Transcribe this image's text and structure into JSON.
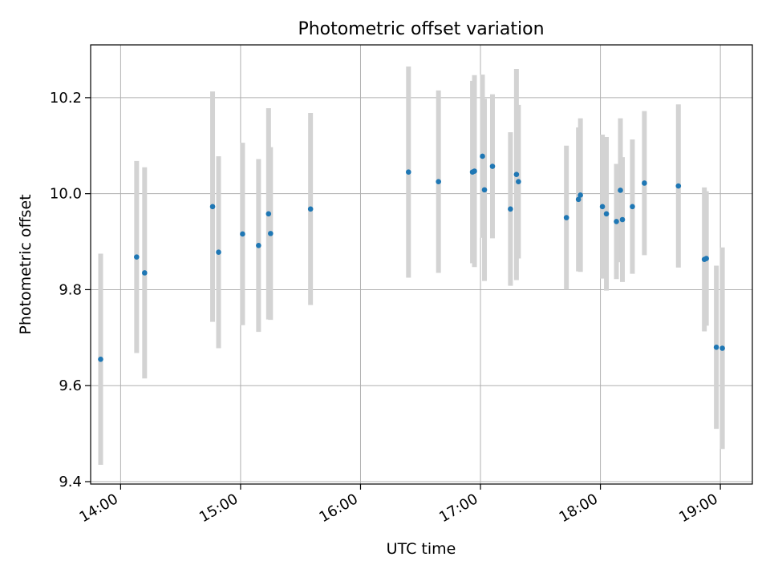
{
  "chart_data": {
    "type": "scatter",
    "title": "Photometric offset variation",
    "xlabel": "UTC time",
    "ylabel": "Photometric offset",
    "x_is_time": true,
    "xlim": [
      "13:45",
      "19:16"
    ],
    "ylim": [
      9.395,
      10.31
    ],
    "xticks": [
      "14:00",
      "15:00",
      "16:00",
      "17:00",
      "18:00",
      "19:00"
    ],
    "yticks": [
      "9.4",
      "9.6",
      "9.8",
      "10.0",
      "10.2"
    ],
    "grid": true,
    "legend": "none",
    "colors": {
      "point": "#1f77b4",
      "errorbar": "#d3d3d3",
      "grid": "#b0b0b0"
    },
    "points": [
      {
        "x": "13:50",
        "y": 9.655,
        "yerr": 0.22
      },
      {
        "x": "14:08",
        "y": 9.868,
        "yerr": 0.2
      },
      {
        "x": "14:12",
        "y": 9.835,
        "yerr": 0.22
      },
      {
        "x": "14:46",
        "y": 9.973,
        "yerr": 0.24
      },
      {
        "x": "14:49",
        "y": 9.878,
        "yerr": 0.2
      },
      {
        "x": "15:01",
        "y": 9.916,
        "yerr": 0.19
      },
      {
        "x": "15:09",
        "y": 9.892,
        "yerr": 0.18
      },
      {
        "x": "15:14",
        "y": 9.958,
        "yerr": 0.22
      },
      {
        "x": "15:15",
        "y": 9.917,
        "yerr": 0.18
      },
      {
        "x": "15:35",
        "y": 9.968,
        "yerr": 0.2
      },
      {
        "x": "16:24",
        "y": 10.045,
        "yerr": 0.22
      },
      {
        "x": "16:39",
        "y": 10.025,
        "yerr": 0.19
      },
      {
        "x": "16:56",
        "y": 10.045,
        "yerr": 0.19
      },
      {
        "x": "16:57",
        "y": 10.047,
        "yerr": 0.2
      },
      {
        "x": "17:01",
        "y": 10.078,
        "yerr": 0.17
      },
      {
        "x": "17:02",
        "y": 10.008,
        "yerr": 0.19
      },
      {
        "x": "17:06",
        "y": 10.057,
        "yerr": 0.15
      },
      {
        "x": "17:15",
        "y": 9.968,
        "yerr": 0.16
      },
      {
        "x": "17:18",
        "y": 10.04,
        "yerr": 0.22
      },
      {
        "x": "17:19",
        "y": 10.025,
        "yerr": 0.16
      },
      {
        "x": "17:43",
        "y": 9.95,
        "yerr": 0.15
      },
      {
        "x": "17:49",
        "y": 9.988,
        "yerr": 0.15
      },
      {
        "x": "17:50",
        "y": 9.997,
        "yerr": 0.16
      },
      {
        "x": "18:01",
        "y": 9.973,
        "yerr": 0.15
      },
      {
        "x": "18:03",
        "y": 9.958,
        "yerr": 0.16
      },
      {
        "x": "18:08",
        "y": 9.942,
        "yerr": 0.12
      },
      {
        "x": "18:10",
        "y": 10.007,
        "yerr": 0.15
      },
      {
        "x": "18:11",
        "y": 9.946,
        "yerr": 0.13
      },
      {
        "x": "18:16",
        "y": 9.973,
        "yerr": 0.14
      },
      {
        "x": "18:22",
        "y": 10.022,
        "yerr": 0.15
      },
      {
        "x": "18:39",
        "y": 10.016,
        "yerr": 0.17
      },
      {
        "x": "18:52",
        "y": 9.863,
        "yerr": 0.15
      },
      {
        "x": "18:53",
        "y": 9.865,
        "yerr": 0.14
      },
      {
        "x": "18:58",
        "y": 9.68,
        "yerr": 0.17
      },
      {
        "x": "19:01",
        "y": 9.678,
        "yerr": 0.21
      }
    ]
  }
}
